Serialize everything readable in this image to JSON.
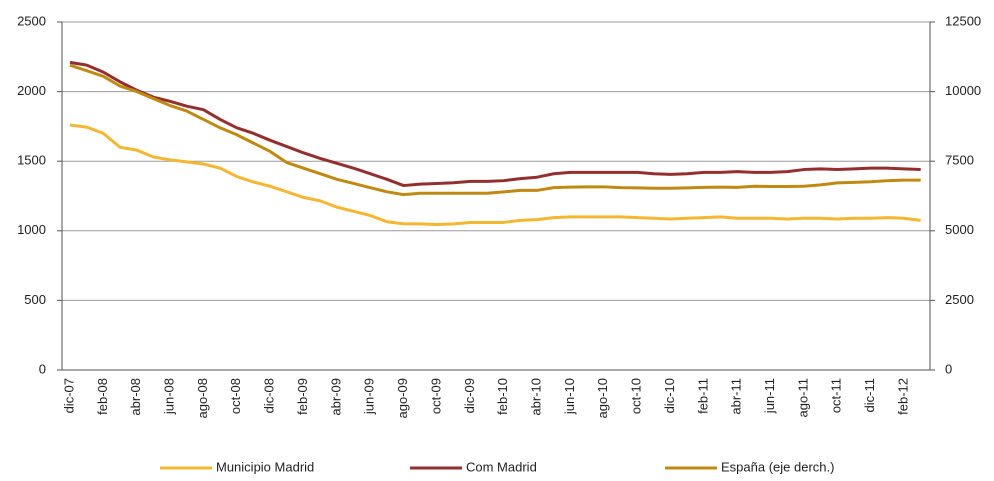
{
  "chart_data": {
    "type": "line",
    "categories": [
      "dic-07",
      null,
      "feb-08",
      null,
      "abr-08",
      null,
      "jun-08",
      null,
      "ago-08",
      null,
      "oct-08",
      null,
      "dic-08",
      null,
      "feb-09",
      null,
      "abr-09",
      null,
      "jun-09",
      null,
      "ago-09",
      null,
      "oct-09",
      null,
      "dic-09",
      null,
      "feb-10",
      null,
      "abr-10",
      null,
      "jun-10",
      null,
      "ago-10",
      null,
      "oct-10",
      null,
      "dic-10",
      null,
      "feb-11",
      null,
      "abr-11",
      null,
      "jun-11",
      null,
      "ago-11",
      null,
      "oct-11",
      null,
      "dic-11",
      null,
      "feb-12",
      null
    ],
    "series": [
      {
        "name": "Municipio Madrid",
        "color": "#f5b731",
        "values": [
          1760,
          1745,
          1700,
          1600,
          1580,
          1530,
          1510,
          1495,
          1480,
          1450,
          1390,
          1350,
          1320,
          1280,
          1240,
          1215,
          1170,
          1140,
          1110,
          1065,
          1050,
          1050,
          1045,
          1050,
          1060,
          1060,
          1060,
          1075,
          1080,
          1095,
          1100,
          1100,
          1100,
          1100,
          1095,
          1090,
          1085,
          1090,
          1095,
          1100,
          1090,
          1090,
          1090,
          1085,
          1090,
          1090,
          1085,
          1090,
          1090,
          1095,
          1090,
          1075
        ]
      },
      {
        "name": "Com Madrid",
        "color": "#93302e",
        "values": [
          2210,
          2190,
          2140,
          2070,
          2010,
          1960,
          1930,
          1895,
          1870,
          1800,
          1740,
          1700,
          1650,
          1605,
          1560,
          1520,
          1485,
          1450,
          1410,
          1370,
          1325,
          1335,
          1340,
          1345,
          1355,
          1355,
          1360,
          1375,
          1385,
          1410,
          1420,
          1420,
          1420,
          1420,
          1420,
          1410,
          1405,
          1410,
          1420,
          1420,
          1425,
          1420,
          1420,
          1425,
          1440,
          1445,
          1440,
          1445,
          1450,
          1450,
          1445,
          1440
        ]
      },
      {
        "name": "España (eje derch.)",
        "color": "#c08a12",
        "axis": "y2",
        "values": [
          10950,
          10750,
          10550,
          10200,
          10000,
          9750,
          9500,
          9300,
          9000,
          8700,
          8450,
          8150,
          7850,
          7450,
          7250,
          7050,
          6850,
          6700,
          6550,
          6400,
          6300,
          6350,
          6350,
          6350,
          6350,
          6350,
          6400,
          6450,
          6450,
          6550,
          6570,
          6580,
          6580,
          6550,
          6540,
          6530,
          6530,
          6540,
          6560,
          6570,
          6560,
          6600,
          6590,
          6590,
          6600,
          6650,
          6720,
          6740,
          6760,
          6800,
          6820,
          6820
        ]
      }
    ],
    "ylim": [
      0,
      2500
    ],
    "yticks": [
      0,
      500,
      1000,
      1500,
      2000,
      2500
    ],
    "y2lim": [
      0,
      12500
    ],
    "y2ticks": [
      0,
      2500,
      5000,
      7500,
      10000,
      12500
    ],
    "grid": true,
    "legend": "bottom"
  }
}
